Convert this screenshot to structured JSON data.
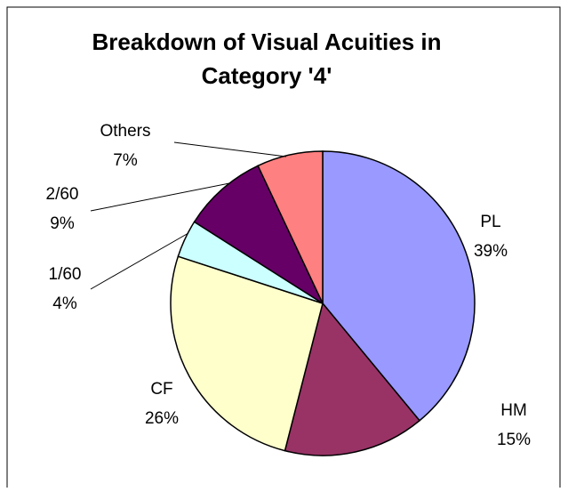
{
  "chart_data": {
    "type": "pie",
    "title": "Breakdown of Visual Acuities in Category '4'",
    "categories": [
      "PL",
      "HM",
      "CF",
      "1/60",
      "2/60",
      "Others"
    ],
    "values": [
      39,
      15,
      26,
      4,
      9,
      7
    ],
    "value_labels": [
      "39%",
      "15%",
      "26%",
      "4%",
      "9%",
      "7%"
    ],
    "colors": [
      "#9999ff",
      "#993366",
      "#ffffcc",
      "#ccffff",
      "#660066",
      "#ff8080"
    ]
  }
}
